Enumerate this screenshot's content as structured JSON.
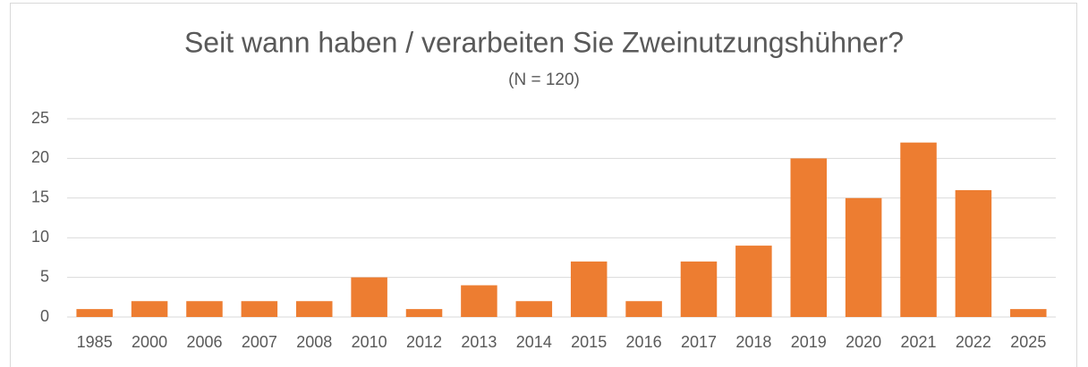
{
  "chart_data": {
    "type": "bar",
    "title": "Seit wann haben / verarbeiten Sie Zweinutzungshühner?",
    "subtitle": "(N = 120)",
    "categories": [
      "1985",
      "2000",
      "2006",
      "2007",
      "2008",
      "2010",
      "2012",
      "2013",
      "2014",
      "2015",
      "2016",
      "2017",
      "2018",
      "2019",
      "2020",
      "2021",
      "2022",
      "2025"
    ],
    "values": [
      1,
      2,
      2,
      2,
      2,
      5,
      1,
      4,
      2,
      7,
      2,
      7,
      9,
      20,
      15,
      22,
      16,
      1
    ],
    "color": "#ed7d31",
    "ylim": [
      0,
      25
    ],
    "yticks": [
      0,
      5,
      10,
      15,
      20,
      25
    ],
    "grid": true
  }
}
